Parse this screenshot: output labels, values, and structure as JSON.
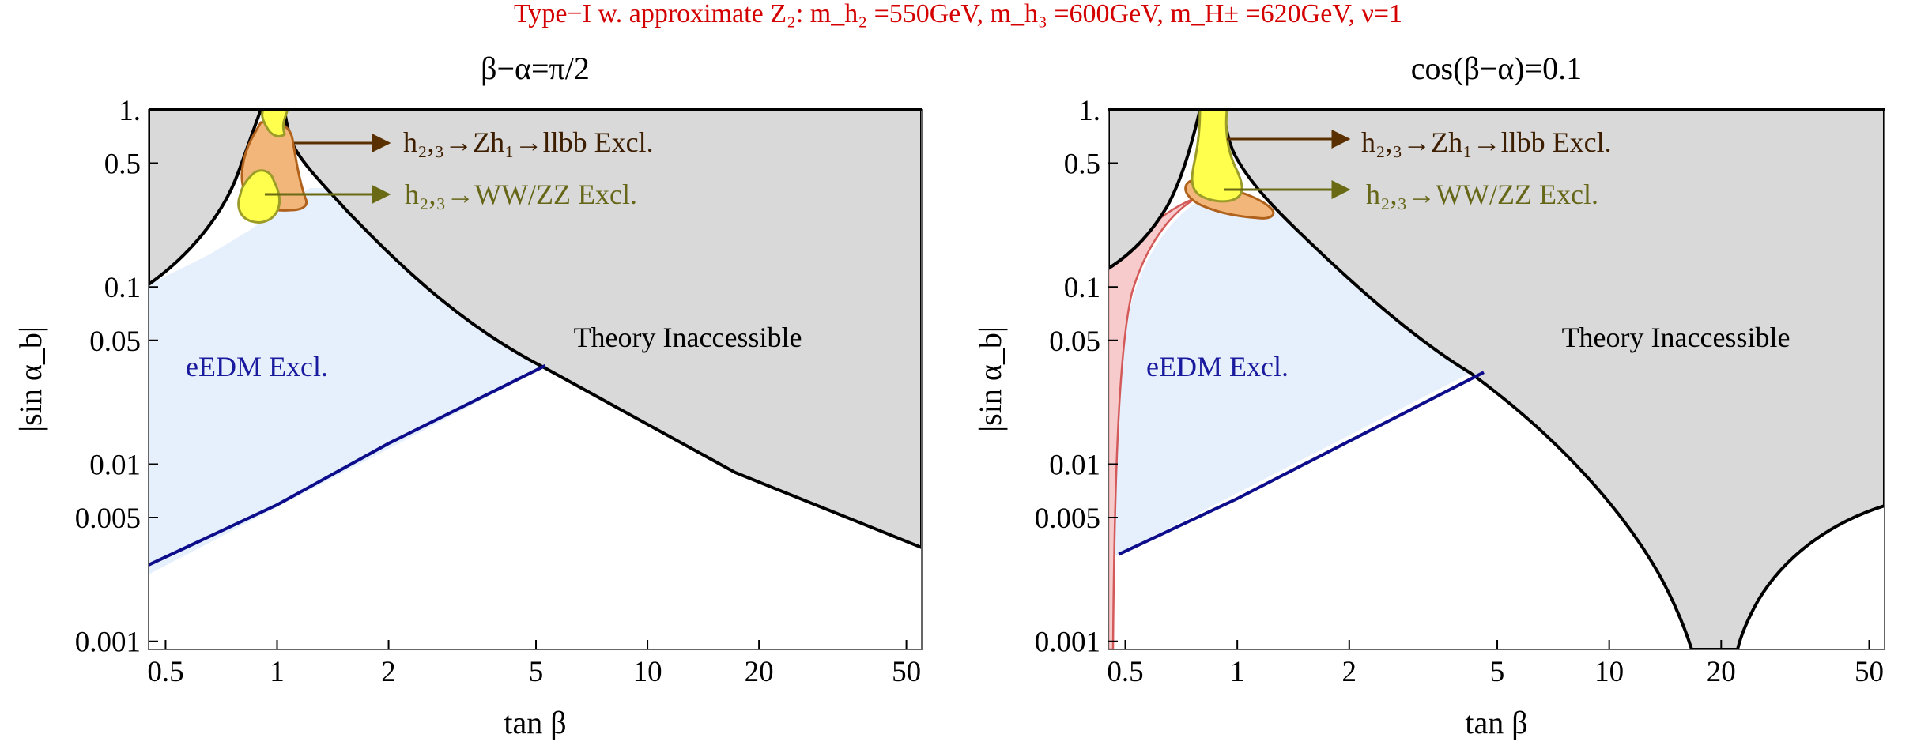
{
  "suptitle": "Type−I w. approximate Z₂: m_h₂ =550GeV, m_h₃ =600GeV, m_H± =620GeV, ν=1",
  "colors": {
    "theory": "#d9d9d9",
    "edm_fill": "#e6f0fd",
    "edm_line": "#0d0d8c",
    "wwzz_fill": "#ffff4d",
    "wwzz_line": "#9c9c28",
    "zh_fill": "#f2b67a",
    "zh_line": "#b0621c",
    "red_fill": "#f7cbcb",
    "red_line": "#d45a5a",
    "boundary": "#000000",
    "title_red": "#d40000",
    "arrow_zh": "#5a3000",
    "arrow_ww": "#6a6a14",
    "text_zh": "#3d1e00",
    "text_ww": "#666618"
  },
  "chart_data": [
    {
      "type": "area",
      "title": "β−α=π/2",
      "xlabel": "tan β",
      "ylabel": "|sin α_b|",
      "xscale": "log",
      "yscale": "log",
      "xlim": [
        0.45,
        55
      ],
      "ylim": [
        0.0009,
        1.0
      ],
      "xticks": [
        0.5,
        1,
        2,
        5,
        10,
        20,
        50
      ],
      "xtick_labels": [
        "0.5",
        "1",
        "2",
        "5",
        "10",
        "20",
        "50"
      ],
      "yticks": [
        0.001,
        0.005,
        0.01,
        0.05,
        0.1,
        0.5,
        1.0
      ],
      "ytick_labels": [
        "0.001",
        "0.005",
        "0.01",
        "0.05",
        "0.1",
        "0.5",
        "1."
      ],
      "theory_left_boundary": {
        "x": [
          0.45,
          0.55,
          0.65,
          0.75,
          0.85,
          0.92
        ],
        "y": [
          0.1,
          0.14,
          0.2,
          0.3,
          0.5,
          1.0
        ]
      },
      "theory_right_boundary": {
        "x": [
          1.0,
          1.1,
          1.3,
          1.7,
          2.3,
          3.5,
          5.3,
          10,
          20,
          55
        ],
        "y": [
          1.0,
          0.5,
          0.3,
          0.18,
          0.1,
          0.055,
          0.036,
          0.018,
          0.009,
          0.0035
        ]
      },
      "edm_boundary": {
        "x": [
          0.45,
          1,
          2,
          5.3
        ],
        "y": [
          0.0027,
          0.0059,
          0.0131,
          0.036
        ]
      },
      "regions": [
        "Theory Inaccessible",
        "eEDM Excl."
      ],
      "annotations": [
        {
          "label": "h₂,₃→Zh₁→llbb Excl.",
          "arrow_x": 1.2,
          "arrow_y": 0.55
        },
        {
          "label": "h₂,₃→WW/ZZ Excl.",
          "arrow_x": 1.0,
          "arrow_y": 0.28
        }
      ]
    },
    {
      "type": "area",
      "title": "cos(β−α)=0.1",
      "xlabel": "tan β",
      "ylabel": "|sin α_b|",
      "xscale": "log",
      "yscale": "log",
      "xlim": [
        0.45,
        55
      ],
      "ylim": [
        0.0009,
        1.0
      ],
      "xticks": [
        0.5,
        1,
        2,
        5,
        10,
        20,
        50
      ],
      "xtick_labels": [
        "0.5",
        "1",
        "2",
        "5",
        "10",
        "20",
        "50"
      ],
      "yticks": [
        0.001,
        0.005,
        0.01,
        0.05,
        0.1,
        0.5,
        1.0
      ],
      "ytick_labels": [
        "0.001",
        "0.005",
        "0.01",
        "0.05",
        "0.1",
        "0.5",
        "1."
      ],
      "theory_left_boundary": {
        "x": [
          0.45,
          0.55,
          0.65,
          0.75,
          0.85,
          0.92
        ],
        "y": [
          0.13,
          0.16,
          0.2,
          0.28,
          0.45,
          1.0
        ]
      },
      "theory_right_boundary": {
        "x": [
          1.0,
          1.1,
          1.3,
          1.7,
          2.3,
          3.4,
          4.6,
          7,
          10,
          14,
          17.5,
          19
        ],
        "y": [
          1.0,
          0.5,
          0.3,
          0.18,
          0.1,
          0.05,
          0.03,
          0.015,
          0.008,
          0.003,
          0.0012,
          0.0009
        ]
      },
      "theory_lower_right_boundary": {
        "x": [
          21.5,
          23,
          26,
          32,
          40,
          55
        ],
        "y": [
          0.0009,
          0.0013,
          0.0022,
          0.0035,
          0.0046,
          0.0058
        ]
      },
      "edm_boundary": {
        "x": [
          0.48,
          1,
          2,
          4.6
        ],
        "y": [
          0.0031,
          0.0064,
          0.0135,
          0.033
        ]
      },
      "regions": [
        "Theory Inaccessible",
        "eEDM Excl."
      ],
      "annotations": [
        {
          "label": "h₂,₃→Zh₁→llbb Excl.",
          "arrow_x": 1.0,
          "arrow_y": 0.68
        },
        {
          "label": "h₂,₃→WW/ZZ Excl.",
          "arrow_x": 0.96,
          "arrow_y": 0.33
        }
      ]
    }
  ]
}
